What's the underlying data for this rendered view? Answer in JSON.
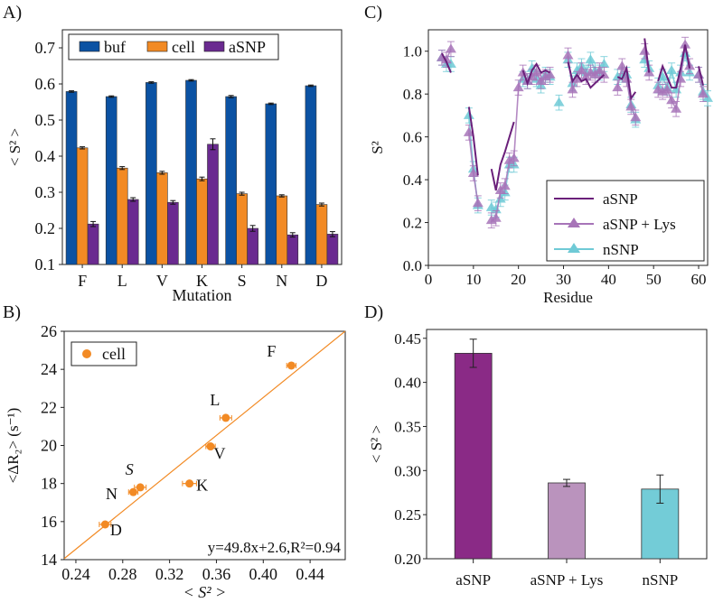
{
  "chart_data": [
    {
      "panel": "A)",
      "type": "bar",
      "title": "",
      "xlabel": "Mutation",
      "ylabel": "< S² >",
      "ylim": [
        0.1,
        0.75
      ],
      "yticks": [
        "0.1",
        "0.2",
        "0.3",
        "0.4",
        "0.5",
        "0.6",
        "0.7"
      ],
      "grid": false,
      "legend": "top-left",
      "categories": [
        "F",
        "L",
        "V",
        "K",
        "S",
        "N",
        "D"
      ],
      "series": [
        {
          "name": "buf",
          "color": "#0b52a3",
          "values": [
            0.579,
            0.565,
            0.604,
            0.61,
            0.565,
            0.545,
            0.595
          ],
          "errors": [
            0.002,
            0.002,
            0.002,
            0.002,
            0.003,
            0.002,
            0.002
          ]
        },
        {
          "name": "cell",
          "color": "#f28a24",
          "values": [
            0.423,
            0.367,
            0.354,
            0.337,
            0.296,
            0.29,
            0.266
          ],
          "errors": [
            0.003,
            0.004,
            0.004,
            0.005,
            0.004,
            0.003,
            0.004
          ]
        },
        {
          "name": "aSNP",
          "color": "#6a2a90",
          "values": [
            0.212,
            0.28,
            0.272,
            0.433,
            0.2,
            0.182,
            0.184
          ],
          "errors": [
            0.007,
            0.005,
            0.005,
            0.015,
            0.008,
            0.006,
            0.007
          ]
        }
      ]
    },
    {
      "panel": "B)",
      "type": "scatter",
      "title": "",
      "xlabel": "< S² >",
      "ylabel": "<ΔR₂> (s⁻¹)",
      "xlim": [
        0.23,
        0.47
      ],
      "ylim": [
        14,
        26
      ],
      "xticks": [
        "0.24",
        "0.28",
        "0.32",
        "0.36",
        "0.40",
        "0.44"
      ],
      "yticks": [
        "14",
        "16",
        "18",
        "20",
        "22",
        "24",
        "26"
      ],
      "legend": "top-left",
      "series": [
        {
          "name": "cell",
          "color": "#f28a24",
          "points": [
            {
              "label": "F",
              "x": 0.424,
              "y": 24.2,
              "xerr": 0.004
            },
            {
              "label": "L",
              "x": 0.368,
              "y": 21.45,
              "xerr": 0.005
            },
            {
              "label": "V",
              "x": 0.355,
              "y": 19.95,
              "xerr": 0.004
            },
            {
              "label": "K",
              "x": 0.337,
              "y": 18.0,
              "xerr": 0.006
            },
            {
              "label": "S",
              "x": 0.295,
              "y": 17.8,
              "xerr": 0.005
            },
            {
              "label": "N",
              "x": 0.289,
              "y": 17.55,
              "xerr": 0.004
            },
            {
              "label": "D",
              "x": 0.265,
              "y": 15.85,
              "xerr": 0.005
            }
          ]
        }
      ],
      "fit": {
        "slope": 49.8,
        "intercept": 2.6,
        "r2": 0.94,
        "color": "#f28a24"
      },
      "annotation": "y=49.8x+2.6,R²=0.94"
    },
    {
      "panel": "C)",
      "type": "line",
      "title": "",
      "xlabel": "Residue",
      "ylabel": "S²",
      "xlim": [
        0,
        62
      ],
      "ylim": [
        0.0,
        1.1
      ],
      "xticks": [
        "0",
        "10",
        "20",
        "30",
        "40",
        "50",
        "60"
      ],
      "yticks": [
        "0.0",
        "0.2",
        "0.4",
        "0.6",
        "0.8",
        "1.0"
      ],
      "legend": "bottom-right",
      "series": [
        {
          "name": "aSNP",
          "color": "#6a1f7a",
          "marker": "none",
          "segments": [
            [
              [
                3,
                0.99
              ],
              [
                4,
                0.95
              ],
              [
                5,
                0.9
              ]
            ],
            [
              [
                9,
                0.74
              ],
              [
                10,
                0.6
              ],
              [
                11,
                0.42
              ]
            ],
            [
              [
                14,
                0.45
              ],
              [
                15,
                0.35
              ],
              [
                16,
                0.47
              ],
              [
                17,
                0.53
              ],
              [
                18,
                0.6
              ],
              [
                19,
                0.67
              ]
            ],
            [
              [
                21,
                0.91
              ],
              [
                22,
                0.85
              ],
              [
                23,
                0.91
              ],
              [
                24,
                0.94
              ],
              [
                25,
                0.9
              ],
              [
                26,
                0.91
              ],
              [
                27,
                0.9
              ]
            ],
            [
              [
                31,
                0.95
              ],
              [
                32,
                0.86
              ],
              [
                33,
                0.89
              ],
              [
                34,
                0.86
              ],
              [
                35,
                0.87
              ],
              [
                36,
                0.83
              ],
              [
                37,
                0.85
              ],
              [
                38,
                0.87
              ],
              [
                39,
                0.89
              ]
            ],
            [
              [
                42,
                0.88
              ],
              [
                43,
                0.87
              ],
              [
                44,
                0.92
              ],
              [
                45,
                0.78
              ],
              [
                46,
                0.81
              ]
            ],
            [
              [
                48,
                1.06
              ],
              [
                49,
                0.9
              ]
            ],
            [
              [
                51,
                0.86
              ],
              [
                52,
                0.93
              ],
              [
                53,
                0.88
              ],
              [
                54,
                0.83
              ],
              [
                55,
                0.83
              ],
              [
                56,
                0.92
              ],
              [
                57,
                1.03
              ],
              [
                58,
                0.92
              ]
            ],
            [
              [
                60,
                0.93
              ],
              [
                61,
                0.84
              ]
            ]
          ]
        },
        {
          "name": "aSNP + Lys",
          "color": "#a774b8",
          "marker": "triangle",
          "segments": [
            [
              [
                3,
                0.97
              ],
              [
                4,
                0.96
              ],
              [
                5,
                1.01
              ]
            ],
            [
              [
                9,
                0.62
              ],
              [
                10,
                0.43
              ],
              [
                11,
                0.29
              ]
            ],
            [
              [
                14,
                0.21
              ],
              [
                15,
                0.22
              ],
              [
                16,
                0.35
              ],
              [
                17,
                0.37
              ],
              [
                18,
                0.49
              ],
              [
                19,
                0.5
              ],
              [
                20,
                0.83
              ],
              [
                21,
                0.9
              ]
            ],
            [
              [
                22,
                0.86
              ],
              [
                23,
                0.88
              ],
              [
                24,
                0.9
              ],
              [
                25,
                0.86
              ],
              [
                26,
                0.88
              ],
              [
                27,
                0.89
              ]
            ],
            [
              [
                31,
                0.98
              ],
              [
                32,
                0.82
              ],
              [
                33,
                0.87
              ],
              [
                34,
                0.91
              ],
              [
                35,
                0.88
              ],
              [
                36,
                0.9
              ],
              [
                37,
                0.89
              ],
              [
                38,
                0.91
              ],
              [
                39,
                0.89
              ]
            ],
            [
              [
                42,
                0.83
              ],
              [
                43,
                0.93
              ],
              [
                44,
                0.87
              ],
              [
                45,
                0.74
              ],
              [
                46,
                0.69
              ]
            ],
            [
              [
                48,
                1.0
              ],
              [
                49,
                0.9
              ]
            ],
            [
              [
                51,
                0.82
              ],
              [
                52,
                0.81
              ],
              [
                53,
                0.82
              ],
              [
                54,
                0.77
              ],
              [
                55,
                0.73
              ],
              [
                56,
                0.87
              ],
              [
                57,
                1.03
              ],
              [
                58,
                0.93
              ]
            ],
            [
              [
                60,
                0.89
              ],
              [
                61,
                0.8
              ]
            ]
          ]
        },
        {
          "name": "nSNP",
          "color": "#6fcad6",
          "marker": "triangle",
          "segments": [
            [
              [
                3,
                0.97
              ],
              [
                4,
                0.94
              ],
              [
                5,
                0.94
              ]
            ],
            [
              [
                9,
                0.7
              ],
              [
                10,
                0.45
              ],
              [
                11,
                0.28
              ]
            ],
            [
              [
                14,
                0.27
              ],
              [
                15,
                0.26
              ],
              [
                16,
                0.31
              ],
              [
                17,
                0.34
              ],
              [
                18,
                0.47
              ],
              [
                19,
                0.47
              ]
            ],
            [
              [
                21,
                0.87
              ],
              [
                22,
                0.86
              ],
              [
                23,
                0.92
              ],
              [
                24,
                0.87
              ],
              [
                25,
                0.84
              ],
              [
                26,
                0.89
              ],
              [
                27,
                0.88
              ]
            ],
            [
              [
                29,
                0.76
              ]
            ],
            [
              [
                31,
                0.96
              ],
              [
                32,
                0.85
              ],
              [
                33,
                0.91
              ],
              [
                34,
                0.93
              ],
              [
                35,
                0.9
              ],
              [
                36,
                0.96
              ],
              [
                37,
                0.91
              ],
              [
                38,
                0.9
              ],
              [
                39,
                0.94
              ]
            ],
            [
              [
                42,
                0.88
              ],
              [
                43,
                0.89
              ],
              [
                44,
                0.89
              ],
              [
                45,
                0.75
              ],
              [
                46,
                0.68
              ]
            ],
            [
              [
                48,
                0.96
              ],
              [
                49,
                0.92
              ]
            ],
            [
              [
                51,
                0.84
              ],
              [
                52,
                0.88
              ],
              [
                53,
                0.83
              ],
              [
                54,
                0.91
              ],
              [
                55,
                0.82
              ],
              [
                56,
                0.9
              ],
              [
                57,
                0.99
              ],
              [
                58,
                0.9
              ]
            ],
            [
              [
                60,
                0.89
              ],
              [
                61,
                0.81
              ],
              [
                62,
                0.78
              ]
            ]
          ]
        }
      ]
    },
    {
      "panel": "D)",
      "type": "bar",
      "title": "",
      "xlabel": "",
      "ylabel": "< S² >",
      "ylim": [
        0.2,
        0.46
      ],
      "yticks": [
        "0.20",
        "0.25",
        "0.30",
        "0.35",
        "0.40",
        "0.45"
      ],
      "grid": false,
      "categories": [
        "aSNP",
        "aSNP + Lys",
        "nSNP"
      ],
      "values": [
        0.433,
        0.286,
        0.279
      ],
      "errors": [
        0.016,
        0.004,
        0.016
      ],
      "colors": [
        "#8a2a86",
        "#ba93bd",
        "#73ccd7"
      ]
    }
  ]
}
